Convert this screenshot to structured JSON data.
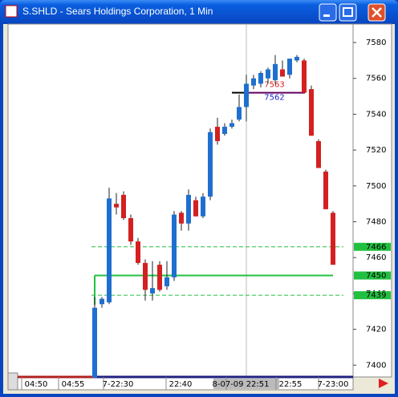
{
  "window": {
    "title": "S.SHLD - Sears Holdings Corporation, 1 Min"
  },
  "chart_data": {
    "type": "candlestick",
    "open": [
      7393,
      7434,
      7435,
      7490,
      7495,
      7482,
      7469,
      7457,
      7440,
      7456,
      7444,
      7449,
      7485,
      7479,
      7492,
      7483,
      7494,
      7533,
      7529,
      7533,
      7537,
      7544,
      7556,
      7557,
      7560,
      7559,
      7565,
      7562,
      7570,
      7570,
      7554,
      7525,
      7508,
      7485
    ],
    "high": [
      7438,
      7438,
      7499,
      7496,
      7497,
      7484,
      7471,
      7459,
      7458,
      7458,
      7458,
      7486,
      7486,
      7498,
      7494,
      7496,
      7532,
      7538,
      7535,
      7537,
      7551,
      7562,
      7562,
      7564,
      7566,
      7573,
      7570,
      7571,
      7573,
      7571,
      7556,
      7526,
      7509,
      7486
    ],
    "low": [
      7393,
      7432,
      7434,
      7484,
      7481,
      7467,
      7456,
      7436,
      7436,
      7441,
      7442,
      7447,
      7475,
      7475,
      7483,
      7482,
      7492,
      7523,
      7528,
      7532,
      7536,
      7536,
      7554,
      7555,
      7557,
      7557,
      7561,
      7560,
      7569,
      7552,
      7528,
      7510,
      7487,
      7456
    ],
    "close": [
      7432,
      7437,
      7493,
      7488,
      7482,
      7469,
      7457,
      7442,
      7443,
      7442,
      7449,
      7484,
      7479,
      7495,
      7483,
      7494,
      7530,
      7525,
      7533,
      7535,
      7544,
      7557,
      7560,
      7563,
      7565,
      7568,
      7561,
      7571,
      7572,
      7552,
      7528,
      7510,
      7487,
      7456
    ],
    "up_color": "#1f6fd0",
    "down_color": "#d42020",
    "ylim": [
      7393.4,
      7590.3
    ],
    "yticks": [
      7580,
      7560,
      7540,
      7520,
      7500,
      7480,
      7460,
      7440,
      7420,
      7400
    ],
    "price_lines": [
      {
        "value": 7466,
        "style": "dashed"
      },
      {
        "value": 7450,
        "style": "solid"
      },
      {
        "value": 7439,
        "style": "dashed"
      }
    ],
    "order_line": 7552,
    "annotations": [
      {
        "text": 7563,
        "color": "#d42020"
      },
      {
        "text": 7562,
        "color": "#2020d0"
      }
    ],
    "xlabels": [
      "04:50",
      "04:55",
      "7-22:30",
      "22:40",
      "8-07-09 22:51",
      "22:55",
      "7-23:00"
    ]
  }
}
